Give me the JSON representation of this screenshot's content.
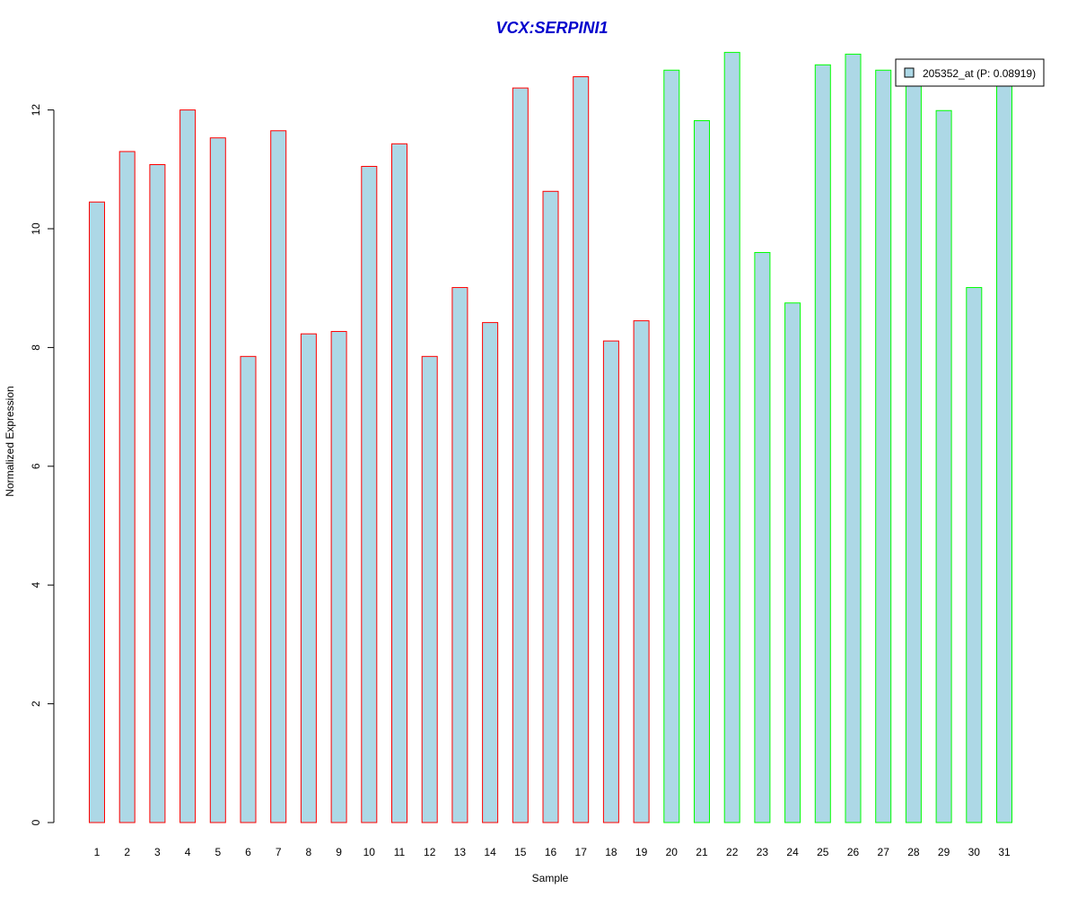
{
  "chart_data": {
    "type": "bar",
    "title": "VCX:SERPINI1",
    "xlabel": "Sample",
    "ylabel": "Normalized Expression",
    "categories": [
      "1",
      "2",
      "3",
      "4",
      "5",
      "6",
      "7",
      "8",
      "9",
      "10",
      "11",
      "12",
      "13",
      "14",
      "15",
      "16",
      "17",
      "18",
      "19",
      "20",
      "21",
      "22",
      "23",
      "24",
      "25",
      "26",
      "27",
      "28",
      "29",
      "30",
      "31"
    ],
    "series": [
      {
        "name": "205352_at (P: 0.08919)",
        "values": [
          10.45,
          11.3,
          11.08,
          12.0,
          11.53,
          7.85,
          11.65,
          8.23,
          8.27,
          11.05,
          11.43,
          7.85,
          9.01,
          8.42,
          12.37,
          10.63,
          12.56,
          8.11,
          8.45,
          12.67,
          11.82,
          12.97,
          9.6,
          8.75,
          12.76,
          12.94,
          12.67,
          12.5,
          11.99,
          9.01,
          12.5
        ]
      }
    ],
    "groups": [
      {
        "samples": [
          1,
          19
        ],
        "border_color": "#ff0000"
      },
      {
        "samples": [
          20,
          31
        ],
        "border_color": "#00ff00"
      }
    ],
    "yticks": [
      0,
      2,
      4,
      6,
      8,
      10,
      12
    ],
    "ylim": [
      0,
      13.2
    ],
    "grid": false,
    "legend_placement": "top-right",
    "colors": {
      "bar_fill": "#add8e6",
      "title": "#0000cd",
      "axis": "#000000"
    }
  }
}
